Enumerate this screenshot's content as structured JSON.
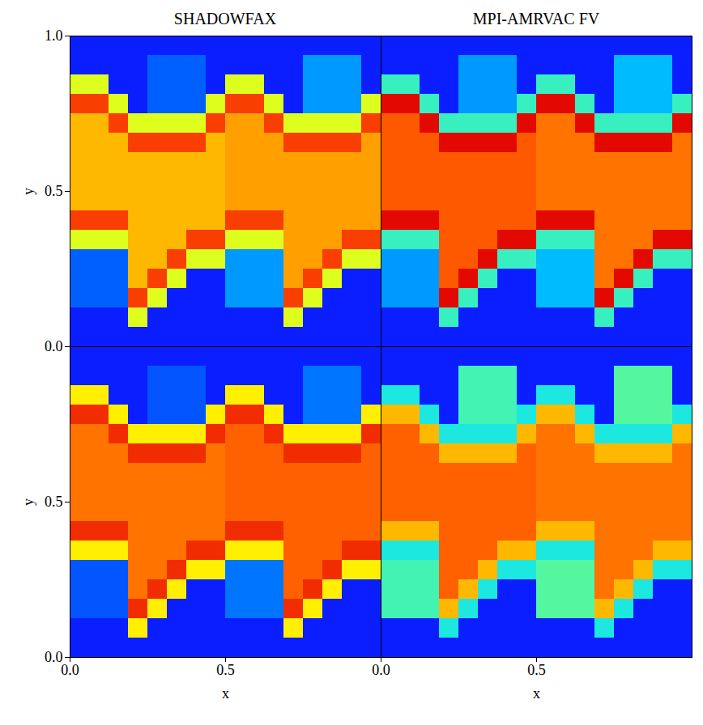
{
  "chart_data": [
    {
      "type": "heatmap",
      "title": "SHADOWFAX",
      "ylabel": "y",
      "xlim": [
        0,
        1
      ],
      "ylim": [
        0,
        1
      ],
      "yticks": [
        {
          "value": 0,
          "label": "0.0"
        },
        {
          "value": 0.5,
          "label": "0.5"
        },
        {
          "value": 1,
          "label": "1.0"
        }
      ],
      "tick_labels": "y",
      "color_range": [
        1,
        2
      ],
      "cells": [
        [
          1,
          1,
          1,
          1,
          1,
          1,
          1,
          1,
          1,
          1,
          1,
          1,
          1,
          1,
          1,
          1
        ],
        [
          1,
          1,
          1,
          1,
          1.12,
          1.12,
          1.12,
          1,
          1,
          1,
          1,
          1,
          1.2,
          1.2,
          1.2,
          1
        ],
        [
          1.6,
          1.6,
          1,
          1,
          1.12,
          1.12,
          1.12,
          1,
          1.6,
          1.6,
          1,
          1,
          1.2,
          1.2,
          1.2,
          1
        ],
        [
          1.86,
          1.86,
          1.6,
          1,
          1.12,
          1.12,
          1.12,
          1.6,
          1.86,
          1.86,
          1.6,
          1,
          1.2,
          1.2,
          1.2,
          1.6
        ],
        [
          1.72,
          1.72,
          1.86,
          1.6,
          1.6,
          1.6,
          1.6,
          1.86,
          1.75,
          1.75,
          1.86,
          1.6,
          1.6,
          1.6,
          1.6,
          1.86
        ],
        [
          1.72,
          1.72,
          1.72,
          1.86,
          1.86,
          1.86,
          1.86,
          1.72,
          1.75,
          1.75,
          1.75,
          1.86,
          1.86,
          1.86,
          1.86,
          1.75
        ],
        [
          1.72,
          1.72,
          1.72,
          1.72,
          1.72,
          1.72,
          1.72,
          1.72,
          1.75,
          1.75,
          1.75,
          1.75,
          1.75,
          1.75,
          1.75,
          1.75
        ],
        [
          1.72,
          1.72,
          1.72,
          1.72,
          1.72,
          1.72,
          1.72,
          1.72,
          1.75,
          1.75,
          1.75,
          1.75,
          1.75,
          1.75,
          1.75,
          1.75
        ],
        [
          1.72,
          1.72,
          1.72,
          1.72,
          1.72,
          1.72,
          1.72,
          1.72,
          1.75,
          1.75,
          1.75,
          1.75,
          1.75,
          1.75,
          1.75,
          1.75
        ],
        [
          1.86,
          1.86,
          1.86,
          1.72,
          1.72,
          1.72,
          1.72,
          1.72,
          1.86,
          1.86,
          1.86,
          1.75,
          1.75,
          1.75,
          1.75,
          1.75
        ],
        [
          1.6,
          1.6,
          1.6,
          1.72,
          1.72,
          1.72,
          1.86,
          1.86,
          1.6,
          1.6,
          1.6,
          1.75,
          1.75,
          1.75,
          1.86,
          1.86
        ],
        [
          1.12,
          1.12,
          1.12,
          1.72,
          1.72,
          1.86,
          1.6,
          1.6,
          1.2,
          1.2,
          1.2,
          1.75,
          1.75,
          1.86,
          1.6,
          1.6
        ],
        [
          1.12,
          1.12,
          1.12,
          1.72,
          1.86,
          1.6,
          1,
          1,
          1.2,
          1.2,
          1.2,
          1.75,
          1.86,
          1.6,
          1,
          1
        ],
        [
          1.12,
          1.12,
          1.12,
          1.86,
          1.6,
          1,
          1,
          1,
          1.2,
          1.2,
          1.2,
          1.86,
          1.6,
          1,
          1,
          1
        ],
        [
          1,
          1,
          1,
          1.6,
          1,
          1,
          1,
          1,
          1,
          1,
          1,
          1.6,
          1,
          1,
          1,
          1
        ],
        [
          1,
          1,
          1,
          1,
          1,
          1,
          1,
          1,
          1,
          1,
          1,
          1,
          1,
          1,
          1,
          1
        ]
      ]
    },
    {
      "type": "heatmap",
      "title": "MPI-AMRVAC FV",
      "xlim": [
        0,
        1
      ],
      "ylim": [
        0,
        1
      ],
      "tick_labels": false,
      "color_range": [
        1,
        2
      ],
      "cells": [
        [
          1,
          1,
          1,
          1,
          1,
          1,
          1,
          1,
          1,
          1,
          1,
          1,
          1,
          1,
          1,
          1
        ],
        [
          1,
          1,
          1,
          1,
          1.2,
          1.2,
          1.2,
          1,
          1,
          1,
          1,
          1,
          1.25,
          1.25,
          1.25,
          1
        ],
        [
          1.4,
          1.4,
          1,
          1,
          1.2,
          1.2,
          1.2,
          1,
          1.4,
          1.4,
          1,
          1,
          1.25,
          1.25,
          1.25,
          1
        ],
        [
          1.92,
          1.92,
          1.4,
          1,
          1.2,
          1.2,
          1.2,
          1.4,
          1.92,
          1.92,
          1.4,
          1,
          1.25,
          1.25,
          1.25,
          1.4
        ],
        [
          1.83,
          1.83,
          1.92,
          1.4,
          1.4,
          1.4,
          1.4,
          1.92,
          1.8,
          1.8,
          1.92,
          1.4,
          1.4,
          1.4,
          1.4,
          1.92
        ],
        [
          1.83,
          1.83,
          1.83,
          1.92,
          1.92,
          1.92,
          1.92,
          1.83,
          1.8,
          1.8,
          1.8,
          1.92,
          1.92,
          1.92,
          1.92,
          1.8
        ],
        [
          1.83,
          1.83,
          1.83,
          1.83,
          1.83,
          1.83,
          1.83,
          1.83,
          1.8,
          1.8,
          1.8,
          1.8,
          1.8,
          1.8,
          1.8,
          1.8
        ],
        [
          1.83,
          1.83,
          1.83,
          1.83,
          1.83,
          1.83,
          1.83,
          1.83,
          1.8,
          1.8,
          1.8,
          1.8,
          1.8,
          1.8,
          1.8,
          1.8
        ],
        [
          1.83,
          1.83,
          1.83,
          1.83,
          1.83,
          1.83,
          1.83,
          1.83,
          1.8,
          1.8,
          1.8,
          1.8,
          1.8,
          1.8,
          1.8,
          1.8
        ],
        [
          1.92,
          1.92,
          1.92,
          1.83,
          1.83,
          1.83,
          1.83,
          1.83,
          1.92,
          1.92,
          1.92,
          1.8,
          1.8,
          1.8,
          1.8,
          1.8
        ],
        [
          1.4,
          1.4,
          1.4,
          1.83,
          1.83,
          1.83,
          1.92,
          1.92,
          1.4,
          1.4,
          1.4,
          1.8,
          1.8,
          1.8,
          1.92,
          1.92
        ],
        [
          1.2,
          1.2,
          1.2,
          1.83,
          1.83,
          1.92,
          1.4,
          1.4,
          1.25,
          1.25,
          1.25,
          1.8,
          1.8,
          1.92,
          1.4,
          1.4
        ],
        [
          1.2,
          1.2,
          1.2,
          1.83,
          1.92,
          1.4,
          1,
          1,
          1.25,
          1.25,
          1.25,
          1.8,
          1.92,
          1.4,
          1,
          1
        ],
        [
          1.2,
          1.2,
          1.2,
          1.92,
          1.4,
          1,
          1,
          1,
          1.25,
          1.25,
          1.25,
          1.92,
          1.4,
          1,
          1,
          1
        ],
        [
          1,
          1,
          1,
          1.4,
          1,
          1,
          1,
          1,
          1,
          1,
          1,
          1.4,
          1,
          1,
          1,
          1
        ],
        [
          1,
          1,
          1,
          1,
          1,
          1,
          1,
          1,
          1,
          1,
          1,
          1,
          1,
          1,
          1,
          1
        ]
      ]
    },
    {
      "type": "heatmap",
      "xlabel": "x",
      "ylabel": "y",
      "xlim": [
        0,
        1
      ],
      "ylim": [
        0,
        1
      ],
      "xticks": [
        {
          "value": 0,
          "label": "0.0"
        },
        {
          "value": 0.5,
          "label": "0.5"
        }
      ],
      "yticks": [
        {
          "value": 0,
          "label": "0.0"
        },
        {
          "value": 0.5,
          "label": "0.5"
        }
      ],
      "color_range": [
        1,
        2
      ],
      "cells": [
        [
          1,
          1,
          1,
          1,
          1,
          1,
          1,
          1,
          1,
          1,
          1,
          1,
          1,
          1,
          1,
          1
        ],
        [
          1,
          1,
          1,
          1,
          1.1,
          1.1,
          1.1,
          1,
          1,
          1,
          1,
          1,
          1.15,
          1.15,
          1.15,
          1
        ],
        [
          1.65,
          1.65,
          1,
          1,
          1.1,
          1.1,
          1.1,
          1,
          1.65,
          1.65,
          1,
          1,
          1.15,
          1.15,
          1.15,
          1
        ],
        [
          1.88,
          1.88,
          1.65,
          1,
          1.1,
          1.1,
          1.1,
          1.65,
          1.88,
          1.88,
          1.65,
          1,
          1.15,
          1.15,
          1.15,
          1.65
        ],
        [
          1.8,
          1.8,
          1.88,
          1.65,
          1.65,
          1.65,
          1.65,
          1.88,
          1.82,
          1.82,
          1.88,
          1.65,
          1.65,
          1.65,
          1.65,
          1.88
        ],
        [
          1.8,
          1.8,
          1.8,
          1.88,
          1.88,
          1.88,
          1.88,
          1.8,
          1.82,
          1.82,
          1.82,
          1.88,
          1.88,
          1.88,
          1.88,
          1.82
        ],
        [
          1.8,
          1.8,
          1.8,
          1.8,
          1.8,
          1.8,
          1.8,
          1.8,
          1.82,
          1.82,
          1.82,
          1.82,
          1.82,
          1.82,
          1.82,
          1.82
        ],
        [
          1.8,
          1.8,
          1.8,
          1.8,
          1.8,
          1.8,
          1.8,
          1.8,
          1.82,
          1.82,
          1.82,
          1.82,
          1.82,
          1.82,
          1.82,
          1.82
        ],
        [
          1.8,
          1.8,
          1.8,
          1.8,
          1.8,
          1.8,
          1.8,
          1.8,
          1.82,
          1.82,
          1.82,
          1.82,
          1.82,
          1.82,
          1.82,
          1.82
        ],
        [
          1.88,
          1.88,
          1.88,
          1.8,
          1.8,
          1.8,
          1.8,
          1.8,
          1.88,
          1.88,
          1.88,
          1.82,
          1.82,
          1.82,
          1.82,
          1.82
        ],
        [
          1.65,
          1.65,
          1.65,
          1.8,
          1.8,
          1.8,
          1.88,
          1.88,
          1.65,
          1.65,
          1.65,
          1.82,
          1.82,
          1.82,
          1.88,
          1.88
        ],
        [
          1.1,
          1.1,
          1.1,
          1.8,
          1.8,
          1.88,
          1.65,
          1.65,
          1.15,
          1.15,
          1.15,
          1.82,
          1.82,
          1.88,
          1.65,
          1.65
        ],
        [
          1.1,
          1.1,
          1.1,
          1.8,
          1.88,
          1.65,
          1,
          1,
          1.15,
          1.15,
          1.15,
          1.82,
          1.88,
          1.65,
          1,
          1
        ],
        [
          1.1,
          1.1,
          1.1,
          1.88,
          1.65,
          1,
          1,
          1,
          1.15,
          1.15,
          1.15,
          1.88,
          1.65,
          1,
          1,
          1
        ],
        [
          1,
          1,
          1,
          1.65,
          1,
          1,
          1,
          1,
          1,
          1,
          1,
          1.65,
          1,
          1,
          1,
          1
        ],
        [
          1,
          1,
          1,
          1,
          1,
          1,
          1,
          1,
          1,
          1,
          1,
          1,
          1,
          1,
          1,
          1
        ]
      ]
    },
    {
      "type": "heatmap",
      "xlabel": "x",
      "xlim": [
        0,
        1
      ],
      "ylim": [
        0,
        1
      ],
      "xticks": [
        {
          "value": 0,
          "label": "0.0"
        },
        {
          "value": 0.5,
          "label": "0.5"
        }
      ],
      "tick_labels": "x",
      "color_range": [
        1,
        2
      ],
      "cells": [
        [
          1,
          1,
          1,
          1,
          1,
          1,
          1,
          1,
          1,
          1,
          1,
          1,
          1,
          1,
          1,
          1
        ],
        [
          1,
          1,
          1,
          1,
          1.42,
          1.42,
          1.42,
          1,
          1,
          1,
          1,
          1,
          1.45,
          1.45,
          1.45,
          1
        ],
        [
          1.35,
          1.35,
          1,
          1,
          1.42,
          1.42,
          1.42,
          1,
          1.35,
          1.35,
          1,
          1,
          1.45,
          1.45,
          1.45,
          1
        ],
        [
          1.72,
          1.72,
          1.35,
          1,
          1.42,
          1.42,
          1.42,
          1.35,
          1.72,
          1.72,
          1.35,
          1,
          1.45,
          1.45,
          1.45,
          1.35
        ],
        [
          1.82,
          1.82,
          1.72,
          1.35,
          1.35,
          1.35,
          1.35,
          1.72,
          1.8,
          1.8,
          1.72,
          1.35,
          1.35,
          1.35,
          1.35,
          1.72
        ],
        [
          1.82,
          1.82,
          1.82,
          1.72,
          1.72,
          1.72,
          1.72,
          1.82,
          1.8,
          1.8,
          1.8,
          1.72,
          1.72,
          1.72,
          1.72,
          1.8
        ],
        [
          1.82,
          1.82,
          1.82,
          1.82,
          1.82,
          1.82,
          1.82,
          1.82,
          1.8,
          1.8,
          1.8,
          1.8,
          1.8,
          1.8,
          1.8,
          1.8
        ],
        [
          1.82,
          1.82,
          1.82,
          1.82,
          1.82,
          1.82,
          1.82,
          1.82,
          1.8,
          1.8,
          1.8,
          1.8,
          1.8,
          1.8,
          1.8,
          1.8
        ],
        [
          1.82,
          1.82,
          1.82,
          1.82,
          1.82,
          1.82,
          1.82,
          1.82,
          1.8,
          1.8,
          1.8,
          1.8,
          1.8,
          1.8,
          1.8,
          1.8
        ],
        [
          1.72,
          1.72,
          1.72,
          1.82,
          1.82,
          1.82,
          1.82,
          1.82,
          1.72,
          1.72,
          1.72,
          1.8,
          1.8,
          1.8,
          1.8,
          1.8
        ],
        [
          1.35,
          1.35,
          1.35,
          1.82,
          1.82,
          1.82,
          1.72,
          1.72,
          1.35,
          1.35,
          1.35,
          1.8,
          1.8,
          1.8,
          1.72,
          1.72
        ],
        [
          1.42,
          1.42,
          1.42,
          1.82,
          1.82,
          1.72,
          1.35,
          1.35,
          1.45,
          1.45,
          1.45,
          1.8,
          1.8,
          1.72,
          1.35,
          1.35
        ],
        [
          1.42,
          1.42,
          1.42,
          1.82,
          1.72,
          1.35,
          1,
          1,
          1.45,
          1.45,
          1.45,
          1.8,
          1.72,
          1.35,
          1,
          1
        ],
        [
          1.42,
          1.42,
          1.42,
          1.72,
          1.35,
          1,
          1,
          1,
          1.45,
          1.45,
          1.45,
          1.72,
          1.35,
          1,
          1,
          1
        ],
        [
          1,
          1,
          1,
          1.35,
          1,
          1,
          1,
          1,
          1,
          1,
          1,
          1.35,
          1,
          1,
          1,
          1
        ],
        [
          1,
          1,
          1,
          1,
          1,
          1,
          1,
          1,
          1,
          1,
          1,
          1,
          1,
          1,
          1,
          1
        ]
      ]
    }
  ]
}
